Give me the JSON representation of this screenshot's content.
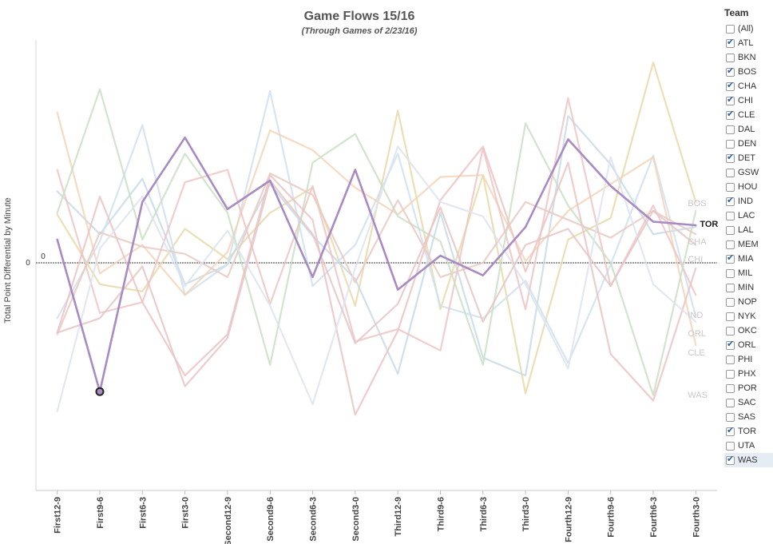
{
  "chart_data": {
    "type": "line",
    "title": "Game Flows 15/16",
    "subtitle": "(Through Games of 2/23/16)",
    "ylabel": "Total Point Differential by Minute",
    "xlabel": "",
    "zero_label": "0",
    "ylim": [
      -12.5,
      13
    ],
    "grid": false,
    "legend_position": "right",
    "categories": [
      "First12-9",
      "First9-6",
      "First6-3",
      "First3-0",
      "Second12-9",
      "Second9-6",
      "Second6-3",
      "Second3-0",
      "Third12-9",
      "Third9-6",
      "Third6-3",
      "Third3-0",
      "Fourth12-9",
      "Fourth9-6",
      "Fourth6-3",
      "Fourth3-0"
    ],
    "highlighted_point": {
      "series": "TOR",
      "x": "First9-6",
      "y": -7.2
    },
    "series": [
      {
        "name": "TOR",
        "color": "#a98bc4",
        "highlight": true,
        "label": "TOR",
        "values": [
          1.3,
          -7.2,
          3.4,
          7.0,
          3.0,
          4.6,
          -0.8,
          5.2,
          -1.5,
          0.4,
          -0.7,
          2.0,
          6.9,
          4.3,
          2.3,
          2.1
        ]
      },
      {
        "name": "BOS",
        "color": "#e8d9a8",
        "highlight": false,
        "label": "BOS",
        "values": [
          2.7,
          -1.2,
          -1.6,
          1.9,
          0.2,
          2.8,
          4.2,
          -2.4,
          8.5,
          -2.6,
          4.9,
          -7.3,
          1.3,
          2.5,
          11.2,
          3.4
        ]
      },
      {
        "name": "CHA",
        "color": "#c7dbe6",
        "highlight": false,
        "label": "CHA",
        "values": [
          4.0,
          1.6,
          4.7,
          -1.2,
          -0.1,
          4.4,
          1.5,
          -0.9,
          -6.2,
          2.8,
          -5.3,
          -6.3,
          8.2,
          5.5,
          1.6,
          2.0
        ]
      },
      {
        "name": "CHI",
        "color": "#cfe0ef",
        "highlight": false,
        "label": "CHI",
        "values": [
          -3.1,
          1.2,
          7.7,
          -1.8,
          -0.1,
          9.6,
          -1.3,
          1.0,
          6.1,
          -2.4,
          -3.1,
          -1.0,
          -5.6,
          -0.1,
          6.0,
          -3.0
        ]
      },
      {
        "name": "IND",
        "color": "#f4d4b8",
        "highlight": false,
        "label": "IND",
        "values": [
          8.4,
          -0.6,
          1.0,
          -1.8,
          0.6,
          7.4,
          6.3,
          4.2,
          2.7,
          4.8,
          4.9,
          0.1,
          2.9,
          4.4,
          5.9,
          -4.6
        ]
      },
      {
        "name": "ORL",
        "color": "#efc4c4",
        "highlight": false,
        "label": "ORL",
        "values": [
          5.2,
          -2.8,
          -2.2,
          4.5,
          5.2,
          -2.3,
          4.3,
          -4.4,
          -3.7,
          -4.9,
          6.4,
          -2.6,
          9.2,
          -1.3,
          3.2,
          -1.8
        ]
      },
      {
        "name": "CLE",
        "color": "#c9dfc6",
        "highlight": false,
        "label": "CLE",
        "values": [
          2.8,
          9.7,
          1.3,
          6.1,
          2.8,
          -5.7,
          5.6,
          7.2,
          2.6,
          1.2,
          -5.7,
          7.8,
          3.2,
          0.0,
          -7.4,
          2.9
        ]
      },
      {
        "name": "WAS",
        "color": "#ecc3c3",
        "highlight": false,
        "label": "WAS",
        "values": [
          -3.9,
          3.7,
          -2.2,
          -6.3,
          -4.0,
          4.9,
          2.4,
          -8.5,
          -3.8,
          3.5,
          6.5,
          -0.5,
          5.6,
          -5.1,
          -7.7,
          -0.3
        ]
      },
      {
        "name": "ATL",
        "color": "#e9c9c2",
        "highlight": false,
        "label": "",
        "values": [
          -4.0,
          1.7,
          0.9,
          0.5,
          -0.8,
          5.0,
          3.8,
          -1.1,
          3.5,
          -0.8,
          0.0,
          3.4,
          2.4,
          1.4,
          2.9,
          1.6
        ]
      },
      {
        "name": "DET",
        "color": "#dde4ee",
        "highlight": false,
        "label": "",
        "values": [
          -8.3,
          0.8,
          3.7,
          -1.3,
          1.8,
          -2.4,
          -7.9,
          -0.3,
          6.5,
          3.4,
          2.6,
          -1.2,
          -5.9,
          5.9,
          -1.2,
          -3.3
        ]
      },
      {
        "name": "MIA",
        "color": "#e6c5c5",
        "highlight": false,
        "label": "",
        "values": [
          -3.9,
          -3.1,
          -0.2,
          -6.9,
          -4.2,
          4.6,
          1.6,
          -4.5,
          -2.3,
          3.1,
          -3.3,
          1.0,
          1.9,
          -1.3,
          2.9,
          1.0
        ]
      }
    ]
  },
  "legend": {
    "title": "Team",
    "items": [
      {
        "label": "(All)",
        "checked": false
      },
      {
        "label": "ATL",
        "checked": true
      },
      {
        "label": "BKN",
        "checked": false
      },
      {
        "label": "BOS",
        "checked": true
      },
      {
        "label": "CHA",
        "checked": true
      },
      {
        "label": "CHI",
        "checked": true
      },
      {
        "label": "CLE",
        "checked": true
      },
      {
        "label": "DAL",
        "checked": false
      },
      {
        "label": "DEN",
        "checked": false
      },
      {
        "label": "DET",
        "checked": true
      },
      {
        "label": "GSW",
        "checked": false
      },
      {
        "label": "HOU",
        "checked": false
      },
      {
        "label": "IND",
        "checked": true
      },
      {
        "label": "LAC",
        "checked": false
      },
      {
        "label": "LAL",
        "checked": false
      },
      {
        "label": "MEM",
        "checked": false
      },
      {
        "label": "MIA",
        "checked": true
      },
      {
        "label": "MIL",
        "checked": false
      },
      {
        "label": "MIN",
        "checked": false
      },
      {
        "label": "NOP",
        "checked": false
      },
      {
        "label": "NYK",
        "checked": false
      },
      {
        "label": "OKC",
        "checked": false
      },
      {
        "label": "ORL",
        "checked": true
      },
      {
        "label": "PHI",
        "checked": false
      },
      {
        "label": "PHX",
        "checked": false
      },
      {
        "label": "POR",
        "checked": false
      },
      {
        "label": "SAC",
        "checked": false
      },
      {
        "label": "SAS",
        "checked": false
      },
      {
        "label": "TOR",
        "checked": true
      },
      {
        "label": "UTA",
        "checked": false
      },
      {
        "label": "WAS",
        "checked": true,
        "highlighted": true
      }
    ]
  }
}
